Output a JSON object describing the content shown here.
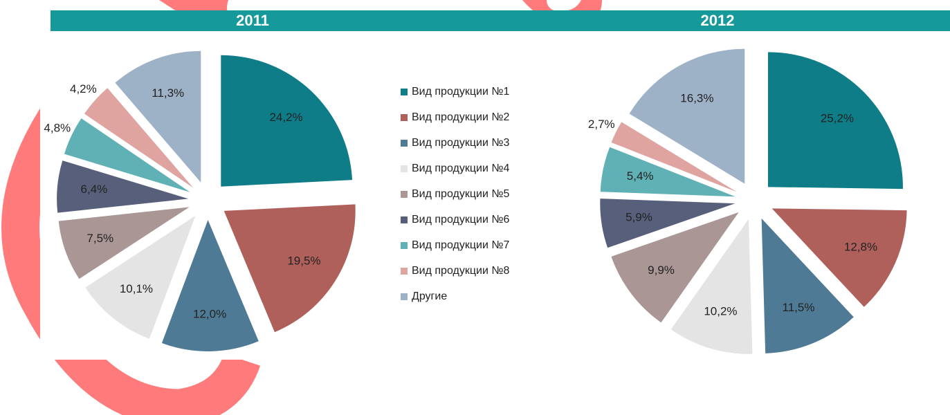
{
  "chart_data": [
    {
      "type": "pie",
      "title": "2011",
      "categories": [
        "Вид продукции №1",
        "Вид продукции №2",
        "Вид продукции №3",
        "Вид продукции №4",
        "Вид продукции №5",
        "Вид продукции №6",
        "Вид продукции №7",
        "Вид продукции №8",
        "Другие"
      ],
      "values": [
        24.2,
        19.5,
        12.0,
        10.1,
        7.5,
        6.4,
        4.8,
        4.2,
        11.3
      ],
      "value_labels": [
        "24,2%",
        "19,5%",
        "12,0%",
        "10,1%",
        "7,5%",
        "6,4%",
        "4,8%",
        "4,2%",
        "11,3%"
      ],
      "colors": [
        "#0e7d87",
        "#b0605b",
        "#4f7a96",
        "#e4e4e4",
        "#a99695",
        "#575f7b",
        "#5fb1b6",
        "#dfa3a0",
        "#9db2c7"
      ]
    },
    {
      "type": "pie",
      "title": "2012",
      "categories": [
        "Вид продукции №1",
        "Вид продукции №2",
        "Вид продукции №3",
        "Вид продукции №4",
        "Вид продукции №5",
        "Вид продукции №6",
        "Вид продукции №7",
        "Вид продукции №8",
        "Другие"
      ],
      "values": [
        25.2,
        12.8,
        11.5,
        10.2,
        9.9,
        5.9,
        5.4,
        2.7,
        16.3
      ],
      "value_labels": [
        "25,2%",
        "12,8%",
        "11,5%",
        "10,2%",
        "9,9%",
        "5,9%",
        "5,4%",
        "2,7%",
        "16,3%"
      ],
      "colors": [
        "#0e7d87",
        "#b0605b",
        "#4f7a96",
        "#e4e4e4",
        "#a99695",
        "#575f7b",
        "#5fb1b6",
        "#dfa3a0",
        "#9db2c7"
      ]
    }
  ]
}
